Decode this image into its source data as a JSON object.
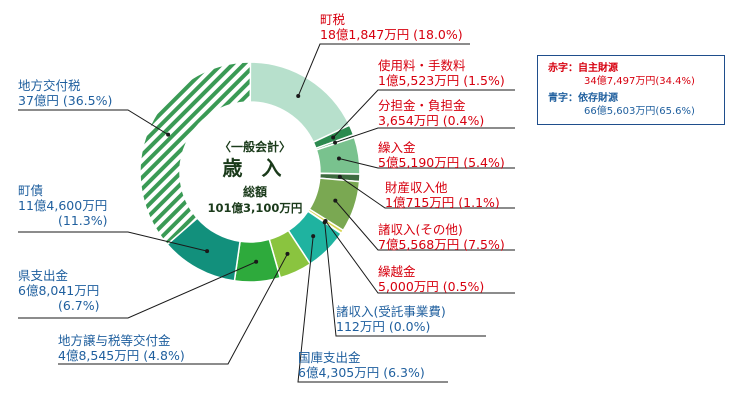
{
  "chart_data": {
    "type": "donut",
    "center": {
      "subtitle": "〈一般会計〉",
      "title": "歳 入",
      "total_label": "総額",
      "total_value": "101億3,100万円"
    },
    "segments": [
      {
        "name": "町税",
        "amount": "18億1,847万円",
        "percent_text": "(18.0%)",
        "value": 18.0,
        "source": "own",
        "color": "#b7e0cc",
        "lines": [
          "町税",
          "18億1,847万円 (18.0%)"
        ]
      },
      {
        "name": "使用料・手数料",
        "amount": "1億5,523万円",
        "percent_text": "(1.5%)",
        "value": 1.5,
        "source": "own",
        "color": "#2c8a4f",
        "lines": [
          "使用料・手数料",
          "1億5,523万円 (1.5%)"
        ]
      },
      {
        "name": "分担金・負担金",
        "amount": "3,654万円",
        "percent_text": "(0.4%)",
        "value": 0.4,
        "source": "own",
        "color": "#4aa86a",
        "lines": [
          "分担金・負担金",
          "3,654万円 (0.4%)"
        ]
      },
      {
        "name": "繰入金",
        "amount": "5億5,190万円",
        "percent_text": "(5.4%)",
        "value": 5.4,
        "source": "own",
        "color": "#79c28e",
        "lines": [
          "繰入金",
          "5億5,190万円 (5.4%)"
        ]
      },
      {
        "name": "財産収入他",
        "amount": "1億715万円",
        "percent_text": "(1.1%)",
        "value": 1.1,
        "source": "own",
        "color": "#3d6b3f",
        "lines": [
          "財産収入他",
          "1億715万円 (1.1%)"
        ]
      },
      {
        "name": "諸収入(その他)",
        "amount": "7億5,568万円",
        "percent_text": "(7.5%)",
        "value": 7.5,
        "source": "own",
        "color": "#7aa852",
        "lines": [
          "諸収入(その他)",
          "7億5,568万円 (7.5%)"
        ]
      },
      {
        "name": "繰越金",
        "amount": "5,000万円",
        "percent_text": "(0.5%)",
        "value": 0.5,
        "source": "own",
        "color": "#d8d650",
        "lines": [
          "繰越金",
          "5,000万円 (0.5%)"
        ]
      },
      {
        "name": "諸収入(受託事業費)",
        "amount": "112万円",
        "percent_text": "(0.0%)",
        "value": 0.0,
        "source": "dependent",
        "color": "#1c9a7a",
        "lines": [
          "諸収入(受託事業費)",
          "112万円 (0.0%)"
        ]
      },
      {
        "name": "国庫支出金",
        "amount": "6億4,305万円",
        "percent_text": "(6.3%)",
        "value": 6.3,
        "source": "dependent",
        "color": "#1fb3a0",
        "lines": [
          "国庫支出金",
          "6億4,305万円 (6.3%)"
        ]
      },
      {
        "name": "地方譲与税等交付金",
        "amount": "4億8,545万円",
        "percent_text": "(4.8%)",
        "value": 4.8,
        "source": "dependent",
        "color": "#8ac43f",
        "lines": [
          "地方譲与税等交付金",
          "4億8,545万円 (4.8%)"
        ]
      },
      {
        "name": "県支出金",
        "amount": "6億8,041万円",
        "percent_text": "(6.7%)",
        "value": 6.7,
        "source": "dependent",
        "color": "#2eaa3c",
        "lines": [
          "県支出金",
          "6億8,041万円",
          "(6.7%)"
        ]
      },
      {
        "name": "町債",
        "amount": "11億4,600万円",
        "percent_text": "(11.3%)",
        "value": 11.3,
        "source": "dependent",
        "color": "#12907c",
        "lines": [
          "町債",
          "11億4,600万円",
          "(11.3%)"
        ]
      },
      {
        "name": "地方交付税",
        "amount": "37億円",
        "percent_text": "(36.5%)",
        "value": 36.5,
        "source": "dependent",
        "color": "#3a9a55",
        "pattern": "stripes",
        "lines": [
          "地方交付税",
          "37億円 (36.5%)"
        ]
      }
    ],
    "legend": {
      "own": {
        "key": "赤字：",
        "name": "自主財源",
        "value": "34億7,497万円(34.4%)"
      },
      "dependent": {
        "key": "青字：",
        "name": "依存財源",
        "value": "66億5,603万円(65.6%)"
      }
    }
  },
  "colors": {
    "own_text": "#d7000f",
    "dependent_text": "#1f5f9e",
    "leader": "#1a1a1a"
  }
}
